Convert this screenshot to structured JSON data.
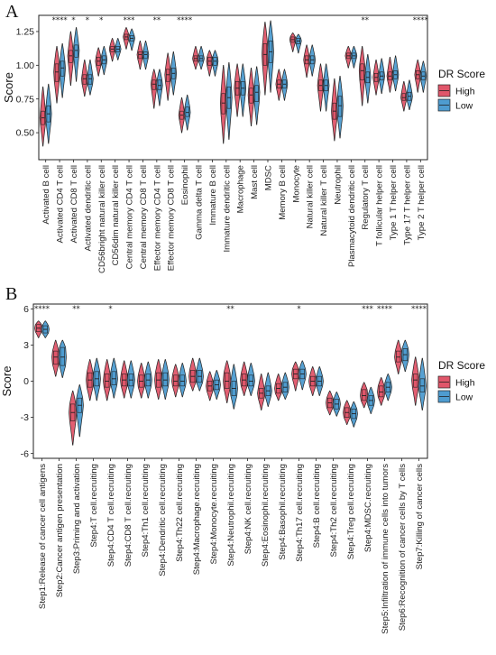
{
  "colors": {
    "high": "#E0566A",
    "low": "#4E9CD0",
    "outline": "#222222"
  },
  "chart_data": [
    {
      "panel": "A",
      "type": "violin",
      "ylabel": "Score",
      "ylim": [
        0.3,
        1.37
      ],
      "yticks": [
        0.5,
        0.75,
        1.0,
        1.25
      ],
      "ytick_labels": [
        "0.50",
        "0.75",
        "1.00",
        "1.25"
      ],
      "legend": {
        "title": "DR Score",
        "entries": [
          "High",
          "Low"
        ],
        "position": "right"
      },
      "categories": [
        "Activated B cell",
        "Activated CD4 T cell",
        "Activated CD8 T cell",
        "Activated dendritic cell",
        "CD56bright natural killer cell",
        "CD56dim natural killer cell",
        "Central memory CD4 T cell",
        "Central memory CD8 T cell",
        "Effector memory CD4 T cell",
        "Effector memory CD8 T cell",
        "Eosinophil",
        "Gamma delta T cell",
        "Immature B cell",
        "Immature dendritic cell",
        "Macrophage",
        "Mast cell",
        "MDSC",
        "Memory B cell",
        "Monocyte",
        "Natural killer cell",
        "Natural killer T cell",
        "Neutrophil",
        "Plasmacytoid dendritic cell",
        "Regulatory T cell",
        "T follicular helper cell",
        "Type 1 T helper cell",
        "Type 17 T helper cell",
        "Type 2 T helper cell"
      ],
      "significance": [
        "",
        "****",
        "*",
        "*",
        "*",
        "",
        "***",
        "",
        "**",
        "",
        "****",
        "",
        "",
        "",
        "",
        "",
        "",
        "",
        "",
        "",
        "",
        "",
        "",
        "**",
        "",
        "",
        "",
        "****"
      ],
      "series": [
        {
          "name": "High",
          "median": [
            0.61,
            0.95,
            1.07,
            0.9,
            1.03,
            1.12,
            1.21,
            1.08,
            0.86,
            0.93,
            0.63,
            1.05,
            1.03,
            0.72,
            0.83,
            0.78,
            1.08,
            0.86,
            1.19,
            1.04,
            0.85,
            0.66,
            1.07,
            0.96,
            0.91,
            0.92,
            0.76,
            0.93
          ],
          "q1": [
            0.56,
            0.88,
            1.02,
            0.86,
            1.0,
            1.1,
            1.19,
            1.05,
            0.82,
            0.88,
            0.6,
            1.03,
            1.0,
            0.64,
            0.78,
            0.72,
            1.0,
            0.83,
            1.17,
            1.01,
            0.81,
            0.6,
            1.05,
            0.89,
            0.88,
            0.89,
            0.74,
            0.9
          ],
          "q3": [
            0.66,
            1.01,
            1.11,
            0.93,
            1.06,
            1.14,
            1.23,
            1.1,
            0.89,
            0.97,
            0.66,
            1.07,
            1.06,
            0.79,
            0.88,
            0.83,
            1.16,
            0.89,
            1.21,
            1.07,
            0.89,
            0.72,
            1.09,
            1.01,
            0.94,
            0.95,
            0.79,
            0.96
          ],
          "min": [
            0.4,
            0.72,
            0.85,
            0.77,
            0.92,
            1.03,
            1.12,
            0.97,
            0.68,
            0.74,
            0.5,
            0.97,
            0.92,
            0.42,
            0.62,
            0.55,
            0.78,
            0.74,
            1.1,
            0.91,
            0.66,
            0.44,
            0.98,
            0.7,
            0.78,
            0.8,
            0.66,
            0.8
          ],
          "max": [
            0.84,
            1.14,
            1.25,
            1.04,
            1.13,
            1.2,
            1.28,
            1.18,
            0.97,
            1.09,
            0.76,
            1.14,
            1.11,
            1.0,
            1.01,
            0.98,
            1.32,
            0.97,
            1.24,
            1.15,
            1.01,
            0.9,
            1.14,
            1.14,
            1.04,
            1.06,
            0.88,
            1.04
          ]
        },
        {
          "name": "Low",
          "median": [
            0.64,
            0.98,
            1.11,
            0.9,
            1.04,
            1.12,
            1.2,
            1.08,
            0.85,
            0.94,
            0.65,
            1.05,
            1.03,
            0.76,
            0.83,
            0.8,
            1.1,
            0.86,
            1.18,
            1.04,
            0.85,
            0.7,
            1.07,
            0.91,
            0.92,
            0.93,
            0.77,
            0.92
          ],
          "q1": [
            0.58,
            0.92,
            1.06,
            0.86,
            1.01,
            1.1,
            1.18,
            1.05,
            0.82,
            0.9,
            0.62,
            1.03,
            1.0,
            0.68,
            0.78,
            0.73,
            1.02,
            0.83,
            1.16,
            1.01,
            0.81,
            0.62,
            1.05,
            0.87,
            0.89,
            0.9,
            0.74,
            0.89
          ],
          "q3": [
            0.7,
            1.03,
            1.15,
            0.93,
            1.07,
            1.14,
            1.22,
            1.1,
            0.89,
            0.98,
            0.69,
            1.07,
            1.06,
            0.84,
            0.88,
            0.85,
            1.18,
            0.89,
            1.2,
            1.07,
            0.89,
            0.77,
            1.09,
            0.95,
            0.95,
            0.96,
            0.8,
            0.95
          ],
          "min": [
            0.42,
            0.76,
            0.88,
            0.78,
            0.93,
            1.04,
            1.11,
            0.97,
            0.7,
            0.78,
            0.52,
            0.97,
            0.92,
            0.45,
            0.62,
            0.56,
            0.8,
            0.74,
            1.09,
            0.92,
            0.66,
            0.46,
            0.98,
            0.72,
            0.79,
            0.81,
            0.67,
            0.8
          ],
          "max": [
            0.86,
            1.16,
            1.28,
            1.04,
            1.14,
            1.2,
            1.27,
            1.18,
            0.97,
            1.1,
            0.78,
            1.14,
            1.11,
            1.02,
            1.01,
            0.99,
            1.33,
            0.97,
            1.23,
            1.15,
            1.01,
            0.92,
            1.14,
            1.08,
            1.05,
            1.07,
            0.89,
            1.03
          ]
        }
      ]
    },
    {
      "panel": "B",
      "type": "violin",
      "ylabel": "Score",
      "ylim": [
        -6.4,
        6.4
      ],
      "yticks": [
        -6,
        -3,
        0,
        3,
        6
      ],
      "ytick_labels": [
        "-6",
        "-3",
        "0",
        "3",
        "6"
      ],
      "legend": {
        "title": "DR Score",
        "entries": [
          "High",
          "Low"
        ],
        "position": "right"
      },
      "categories": [
        "Step1:Release of cancer cell antigens",
        "Step2:Cancer antigen presentation",
        "Step3:Priming and activation",
        "Step4:T cell.recruiting",
        "Step4:CD4 T cell.recruiting",
        "Step4:CD8 T cell.recruiting",
        "Step4:Th1 cell.recruiting",
        "Step4:Dendritic cell.recruiting",
        "Step4:Th22 cell.recruiting",
        "Step4:Macrophage.recruiting",
        "Step4:Monocyte.recruiting",
        "Step4:Neutrophil.recruiting",
        "Step4:NK cell.recruiting",
        "Step4:Eosinophil.recruiting",
        "Step4:Basophil.recruiting",
        "Step4:Th17 cell.recruiting",
        "Step4:B cell.recruiting",
        "Step4:Th2 cell.recruiting",
        "Step4:Treg cell.recruiting",
        "Step4:MDSC.recruiting",
        "Step5:Infiltration of immune cells into tumors",
        "Step6:Recognition of cancer cells by T cells",
        "Step7:Killing of cancer cells"
      ],
      "significance": [
        "****",
        "",
        "**",
        "",
        "*",
        "",
        "",
        "",
        "",
        "",
        "",
        "**",
        "",
        "",
        "",
        "*",
        "",
        "",
        "",
        "***",
        "****",
        "",
        "****"
      ],
      "series": [
        {
          "name": "High",
          "median": [
            4.4,
            2.0,
            -2.6,
            0.1,
            0.0,
            0.1,
            0.0,
            0.1,
            0.0,
            0.4,
            -0.4,
            0.0,
            0.1,
            -1.0,
            -0.6,
            0.6,
            0.0,
            -1.8,
            -2.6,
            -1.2,
            -0.9,
            2.0,
            0.1
          ],
          "q1": [
            4.1,
            1.4,
            -3.3,
            -0.5,
            -0.5,
            -0.4,
            -0.5,
            -0.5,
            -0.4,
            -0.1,
            -0.8,
            -0.6,
            -0.4,
            -1.4,
            -1.0,
            0.2,
            -0.4,
            -2.2,
            -3.0,
            -1.6,
            -1.3,
            1.6,
            -0.5
          ],
          "q3": [
            4.7,
            2.5,
            -1.9,
            0.7,
            0.6,
            0.6,
            0.5,
            0.7,
            0.5,
            0.9,
            0.0,
            0.7,
            0.6,
            -0.6,
            -0.2,
            1.0,
            0.4,
            -1.4,
            -2.2,
            -0.7,
            -0.4,
            2.5,
            0.6
          ],
          "min": [
            3.6,
            0.4,
            -5.3,
            -1.6,
            -1.6,
            -1.4,
            -1.4,
            -1.5,
            -1.3,
            -0.8,
            -1.6,
            -1.8,
            -1.2,
            -2.4,
            -1.6,
            -0.8,
            -1.2,
            -2.8,
            -3.6,
            -2.2,
            -2.0,
            0.6,
            -2.0
          ],
          "max": [
            5.0,
            3.4,
            -0.8,
            1.8,
            1.8,
            1.7,
            1.5,
            1.8,
            1.4,
            1.9,
            0.8,
            1.7,
            1.6,
            0.6,
            0.6,
            1.6,
            1.2,
            -0.8,
            -1.6,
            -0.1,
            0.3,
            3.4,
            2.0
          ]
        },
        {
          "name": "Low",
          "median": [
            4.3,
            2.0,
            -2.0,
            0.2,
            0.2,
            0.1,
            0.1,
            0.1,
            0.0,
            0.4,
            -0.3,
            -0.6,
            0.0,
            -0.8,
            -0.5,
            0.6,
            0.0,
            -1.9,
            -2.7,
            -1.6,
            -0.5,
            2.2,
            -0.4
          ],
          "q1": [
            4.0,
            1.3,
            -2.6,
            -0.4,
            -0.3,
            -0.4,
            -0.4,
            -0.4,
            -0.4,
            -0.1,
            -0.7,
            -1.2,
            -0.4,
            -1.2,
            -0.9,
            0.2,
            -0.4,
            -2.3,
            -3.1,
            -2.0,
            -0.9,
            1.7,
            -0.9
          ],
          "q3": [
            4.6,
            2.8,
            -1.4,
            0.8,
            0.8,
            0.6,
            0.6,
            0.7,
            0.5,
            0.9,
            0.1,
            0.0,
            0.5,
            -0.4,
            -0.1,
            1.0,
            0.4,
            -1.5,
            -2.3,
            -1.2,
            -0.1,
            2.7,
            0.2
          ],
          "min": [
            3.6,
            0.3,
            -4.6,
            -1.6,
            -1.4,
            -1.4,
            -1.4,
            -1.5,
            -1.3,
            -0.8,
            -1.5,
            -2.3,
            -1.2,
            -2.1,
            -1.5,
            -0.7,
            -1.2,
            -2.9,
            -3.8,
            -2.7,
            -1.6,
            0.8,
            -2.4
          ],
          "max": [
            5.0,
            3.4,
            -0.3,
            1.9,
            1.9,
            1.7,
            1.6,
            1.8,
            1.5,
            1.9,
            0.9,
            1.4,
            1.5,
            0.7,
            0.7,
            1.7,
            1.2,
            -0.9,
            -1.7,
            -0.5,
            0.6,
            3.4,
            1.9
          ]
        }
      ]
    }
  ]
}
